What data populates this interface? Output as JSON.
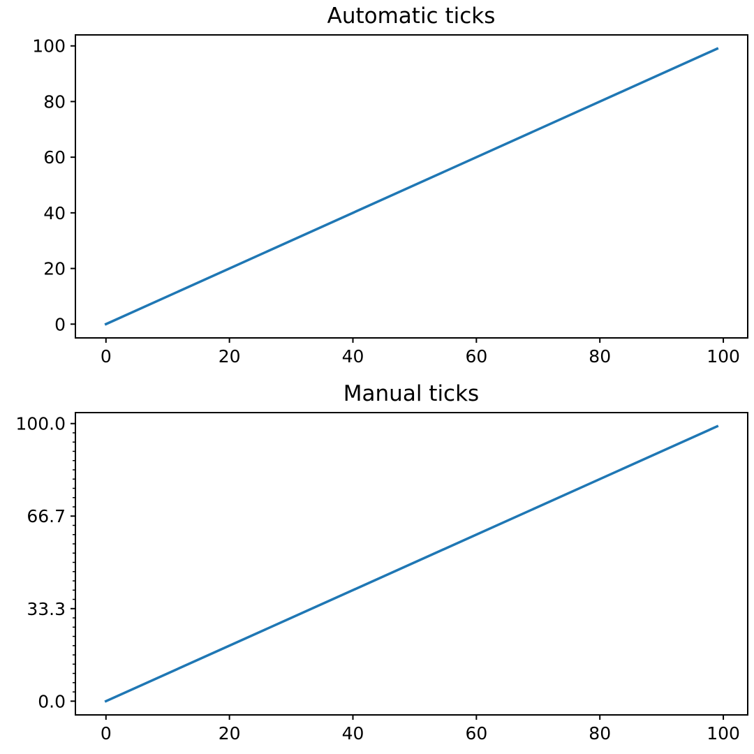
{
  "chart_data": [
    {
      "type": "line",
      "title": "Automatic ticks",
      "xlabel": "",
      "ylabel": "",
      "xlim": [
        -4.95,
        103.95
      ],
      "ylim": [
        -4.95,
        103.95
      ],
      "x_ticks": [
        0,
        20,
        40,
        60,
        80,
        100
      ],
      "x_tick_labels": [
        "0",
        "20",
        "40",
        "60",
        "80",
        "100"
      ],
      "y_ticks": [
        0,
        20,
        40,
        60,
        80,
        100
      ],
      "y_tick_labels": [
        "0",
        "20",
        "40",
        "60",
        "80",
        "100"
      ],
      "y_minor_ticks": [],
      "grid": false,
      "series": [
        {
          "color": "#1f77b4",
          "x": [
            0,
            99
          ],
          "y": [
            0,
            99
          ]
        }
      ]
    },
    {
      "type": "line",
      "title": "Manual ticks",
      "xlabel": "",
      "ylabel": "",
      "xlim": [
        -4.95,
        103.95
      ],
      "ylim": [
        -4.95,
        103.95
      ],
      "x_ticks": [
        0,
        20,
        40,
        60,
        80,
        100
      ],
      "x_tick_labels": [
        "0",
        "20",
        "40",
        "60",
        "80",
        "100"
      ],
      "y_ticks": [
        0,
        33.333,
        66.667,
        100
      ],
      "y_tick_labels": [
        "0.0",
        "33.3",
        "66.7",
        "100.0"
      ],
      "y_minor_ticks": [
        3.333,
        6.667,
        10,
        13.333,
        16.667,
        20,
        23.333,
        26.667,
        30,
        36.667,
        40,
        43.333,
        46.667,
        50,
        53.333,
        56.667,
        60,
        63.333,
        70,
        73.333,
        76.667,
        80,
        83.333,
        86.667,
        90,
        93.333,
        96.667
      ],
      "grid": false,
      "series": [
        {
          "color": "#1f77b4",
          "x": [
            0,
            99
          ],
          "y": [
            0,
            99
          ]
        }
      ]
    }
  ]
}
